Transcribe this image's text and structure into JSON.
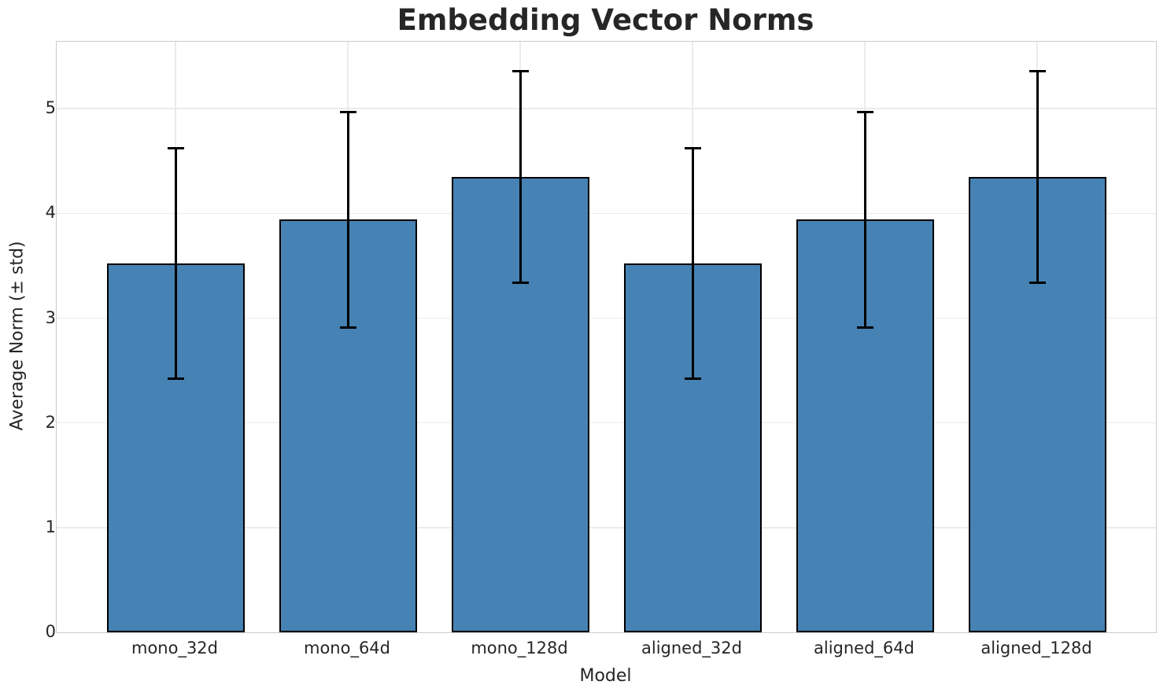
{
  "chart_data": {
    "type": "bar",
    "title": "Embedding Vector Norms",
    "xlabel": "Model",
    "ylabel": "Average Norm (± std)",
    "categories": [
      "mono_32d",
      "mono_64d",
      "mono_128d",
      "aligned_32d",
      "aligned_64d",
      "aligned_128d"
    ],
    "values": [
      3.52,
      3.94,
      4.35,
      3.52,
      3.94,
      4.35
    ],
    "errors": [
      1.1,
      1.03,
      1.01,
      1.1,
      1.03,
      1.01
    ],
    "error_type": "± std, symmetric with caps",
    "yticks": [
      0,
      1,
      2,
      3,
      4,
      5
    ],
    "ylim": [
      0,
      5.64
    ],
    "grid": "both axes, light gray on white",
    "legend": "none",
    "colors": {
      "bar_fill": "#4682b4",
      "bar_edge": "#000000",
      "error_bar": "#000000",
      "grid_line": "#ebebeb",
      "spine": "#cbcbcb",
      "text": "#262626",
      "background": "#ffffff"
    }
  }
}
